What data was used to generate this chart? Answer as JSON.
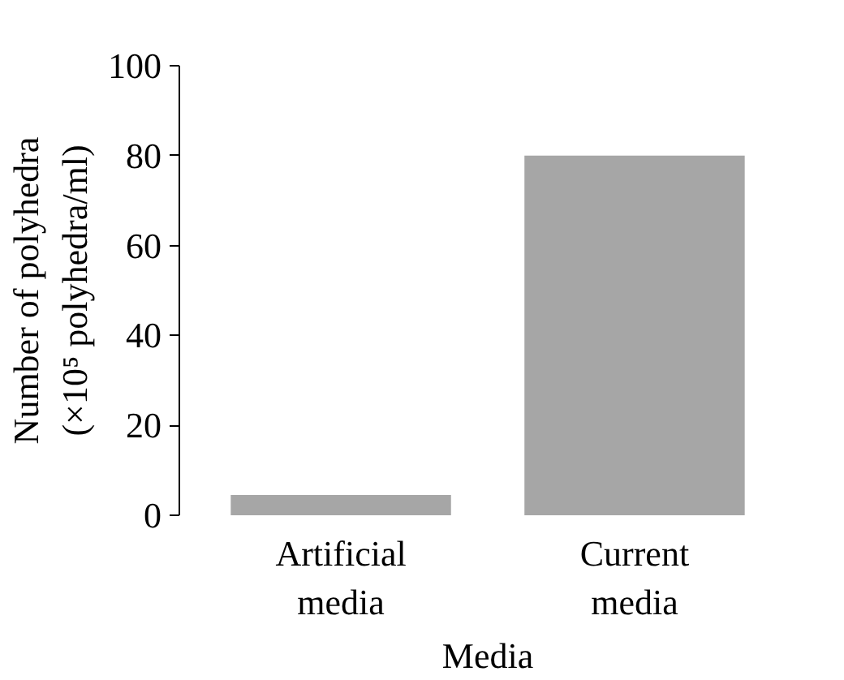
{
  "chart_data": {
    "type": "bar",
    "xlabel": "Media",
    "ylabel": "Number of polyhedra\n(×10⁵ polyhedra/ml)",
    "categories": [
      "Artificial\nmedia",
      "Current\nmedia"
    ],
    "values": [
      4.5,
      80
    ],
    "color": "#a6a6a6",
    "ylim": [
      0,
      100
    ],
    "yticks": [
      0,
      20,
      40,
      60,
      80,
      100
    ],
    "grid": false
  }
}
